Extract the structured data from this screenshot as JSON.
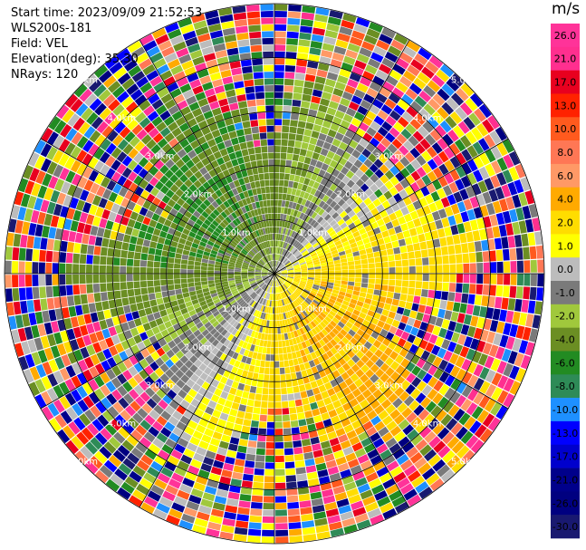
{
  "header": {
    "start_time": "Start time: 2023/09/09 21:52:53",
    "instrument": "WLS200s-181",
    "field": "Field: VEL",
    "elevation": "Elevation(deg): 35.30",
    "nrays": "NRays: 120"
  },
  "chart_data": {
    "type": "heatmap",
    "projection": "polar PPI",
    "field": "VEL",
    "n_rays": 120,
    "range_ring_labels": [
      "1.0km",
      "2.0km",
      "3.0km",
      "4.0km",
      "5.0km"
    ],
    "range_rings_km": [
      1,
      2,
      3,
      4,
      5
    ],
    "max_range_km": 5,
    "colorbar": {
      "unit": "m/s",
      "tick_labels": [
        "26.0",
        "21.0",
        "17.0",
        "13.0",
        "10.0",
        "8.0",
        "6.0",
        "4.0",
        "2.0",
        "1.0",
        "0.0",
        "-1.0",
        "-2.0",
        "-4.0",
        "-6.0",
        "-8.0",
        "-10.0",
        "-13.0",
        "-17.0",
        "-21.0",
        "-26.0",
        "-30.0"
      ],
      "boundaries": [
        30,
        26,
        21,
        17,
        13,
        10,
        8,
        6,
        4,
        2,
        1,
        0,
        -1,
        -2,
        -4,
        -6,
        -8,
        -10,
        -13,
        -17,
        -21,
        -26,
        -30
      ],
      "colors": [
        "#ff3399",
        "#ff2f8f",
        "#e8001f",
        "#ff2200",
        "#ff5a1e",
        "#ff7755",
        "#ff9966",
        "#ffaa00",
        "#ffdd00",
        "#ffff00",
        "#bcbcbc",
        "#7a7a7a",
        "#a0c83c",
        "#6b8e23",
        "#228b22",
        "#2e8b57",
        "#1e90ff",
        "#0000ff",
        "#0000cd",
        "#00008b",
        "#000080",
        "#191970"
      ]
    }
  }
}
